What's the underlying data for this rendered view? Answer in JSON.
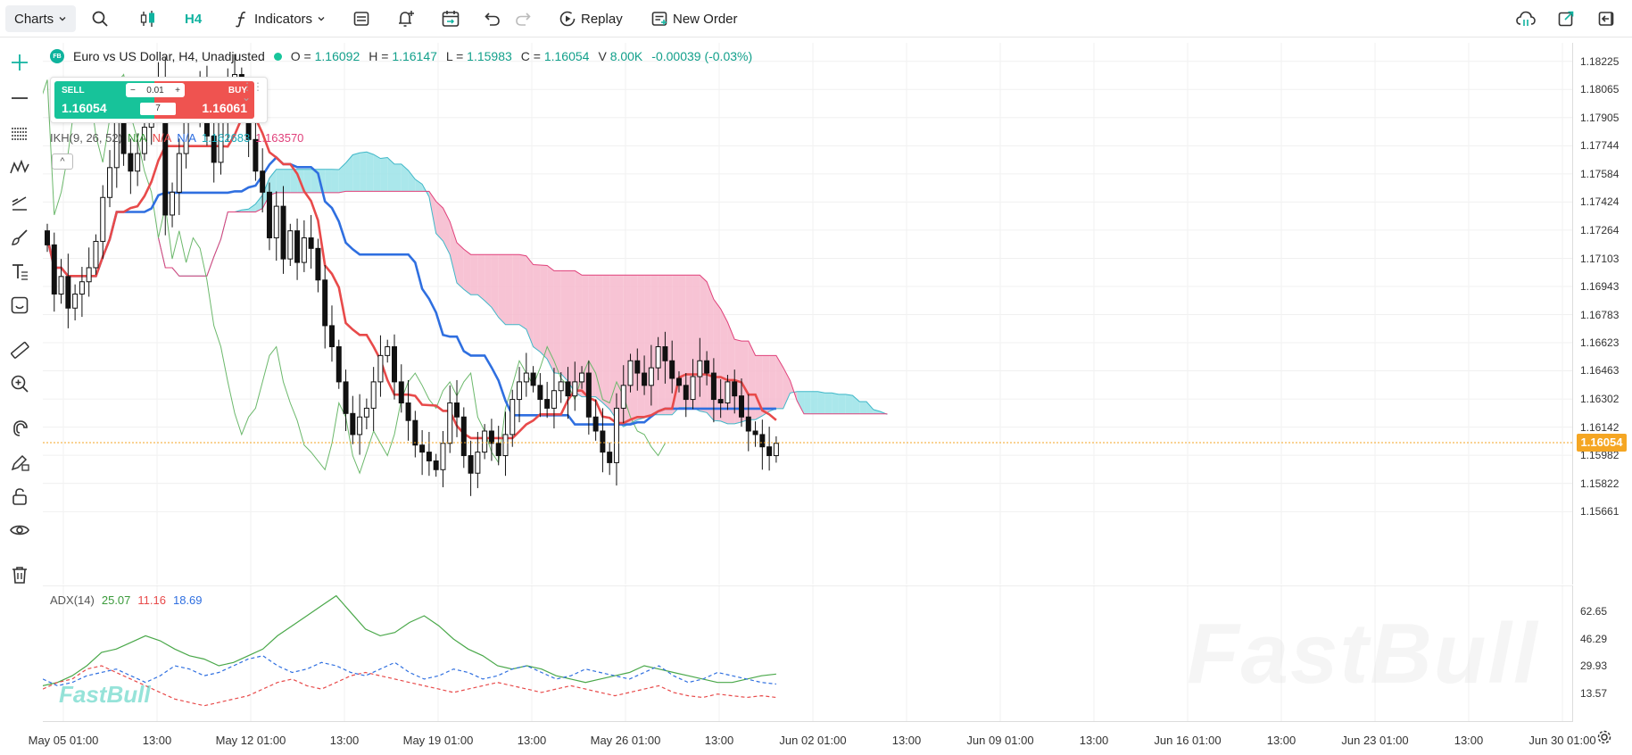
{
  "toolbar": {
    "charts_label": "Charts",
    "timeframe": "H4",
    "indicators_label": "Indicators",
    "replay_label": "Replay",
    "new_order_label": "New Order"
  },
  "legend": {
    "badge": "FB",
    "symbol": "Euro vs US Dollar, H4, Unadjusted",
    "o_key": "O =",
    "o": "1.16092",
    "h_key": "H =",
    "h": "1.16147",
    "l_key": "L =",
    "l": "1.15983",
    "c_key": "C =",
    "c": "1.16054",
    "v_key": "V",
    "v": "8.00K",
    "change": "-0.00039 (-0.03%)"
  },
  "trade": {
    "sell_label": "SELL",
    "sell_price": "1.16054",
    "buy_label": "BUY",
    "buy_price": "1.16061",
    "lot_minus": "−",
    "lot": "0.01",
    "lot_plus": "+",
    "qty": "7"
  },
  "ikh": {
    "name": "IKH(9, 26, 52)",
    "v1": "N/A",
    "v2": "N/A",
    "v3": "N/A",
    "v4": "1.162683",
    "v5": "1.163570",
    "collapse": "^"
  },
  "adx": {
    "name": "ADX(14)",
    "adx": "25.07",
    "minus_di": "11.16",
    "plus_di": "18.69"
  },
  "current_price": "1.16054",
  "watermark": "FastBull",
  "colors": {
    "up": "#ffffff",
    "down": "#111111",
    "tenkan": "#e84a4a",
    "kijun": "#2f6fe0",
    "chikou": "#6bb86b",
    "kumo_bull": "#9be3e8",
    "kumo_bear": "#f6b9cc",
    "price_line": "#f5a623"
  },
  "chart_data": [
    {
      "type": "candlestick",
      "title": "Euro vs US Dollar, H4, Unadjusted",
      "y_ticks": [
        "1.18225",
        "1.18065",
        "1.17905",
        "1.17744",
        "1.17584",
        "1.17424",
        "1.17264",
        "1.17103",
        "1.16943",
        "1.16783",
        "1.16623",
        "1.16463",
        "1.16302",
        "1.16142",
        "1.15982",
        "1.15822",
        "1.15661"
      ],
      "x_ticks": [
        "May 05 01:00",
        "13:00",
        "May 12 01:00",
        "13:00",
        "May 19 01:00",
        "13:00",
        "May 26 01:00",
        "13:00",
        "Jun 02 01:00",
        "13:00",
        "Jun 09 01:00",
        "13:00",
        "Jun 16 01:00",
        "13:00",
        "Jun 23 01:00",
        "13:00",
        "Jun 30 01:00"
      ],
      "ylim": [
        1.155,
        1.183
      ],
      "close": [
        1.1718,
        1.169,
        1.17,
        1.1682,
        1.169,
        1.1697,
        1.1705,
        1.172,
        1.1745,
        1.1762,
        1.179,
        1.177,
        1.176,
        1.177,
        1.1785,
        1.18,
        1.1812,
        1.1735,
        1.1748,
        1.177,
        1.18,
        1.1795,
        1.181,
        1.178,
        1.1765,
        1.179,
        1.181,
        1.1815,
        1.1792,
        1.1778,
        1.176,
        1.1748,
        1.1722,
        1.174,
        1.171,
        1.1726,
        1.1708,
        1.1722,
        1.1716,
        1.1698,
        1.1672,
        1.166,
        1.164,
        1.1622,
        1.161,
        1.162,
        1.1625,
        1.164,
        1.1655,
        1.166,
        1.164,
        1.1628,
        1.1618,
        1.1604,
        1.16,
        1.1595,
        1.159,
        1.1605,
        1.1628,
        1.162,
        1.1598,
        1.1588,
        1.16,
        1.1612,
        1.1605,
        1.1598,
        1.161,
        1.163,
        1.164,
        1.1645,
        1.1638,
        1.163,
        1.1625,
        1.1635,
        1.164,
        1.1632,
        1.164,
        1.1645,
        1.162,
        1.1612,
        1.16,
        1.1594,
        1.1625,
        1.1638,
        1.1652,
        1.1645,
        1.1638,
        1.1648,
        1.166,
        1.1652,
        1.1642,
        1.1638,
        1.163,
        1.1643,
        1.1652,
        1.1645,
        1.163,
        1.1628,
        1.164,
        1.1632,
        1.162,
        1.1612,
        1.161,
        1.1603,
        1.1598,
        1.1605
      ],
      "series": [
        {
          "name": "IKH(9, 26, 52)",
          "last": 1.162683
        },
        {
          "name": "IKH(9, 26, 52)",
          "last": 1.16357
        }
      ]
    },
    {
      "type": "line",
      "title": "ADX(14)",
      "y_ticks": [
        "62.65",
        "46.29",
        "29.93",
        "13.57"
      ],
      "ylim": [
        0,
        75
      ],
      "series": [
        {
          "name": "ADX",
          "last": 25.07,
          "values": [
            18,
            20,
            24,
            30,
            38,
            40,
            44,
            48,
            45,
            40,
            36,
            34,
            30,
            32,
            36,
            40,
            48,
            54,
            60,
            66,
            72,
            62,
            52,
            48,
            50,
            56,
            60,
            54,
            46,
            40,
            36,
            30,
            28,
            30,
            28,
            24,
            22,
            20,
            22,
            24,
            26,
            30,
            28,
            26,
            24,
            22,
            20,
            20,
            22,
            24,
            25
          ]
        },
        {
          "name": "-DI",
          "last": 11.16,
          "values": [
            16,
            20,
            22,
            28,
            30,
            26,
            22,
            18,
            14,
            10,
            8,
            6,
            8,
            10,
            12,
            16,
            20,
            22,
            18,
            16,
            20,
            24,
            26,
            24,
            22,
            20,
            18,
            16,
            14,
            16,
            18,
            20,
            18,
            16,
            14,
            16,
            18,
            16,
            14,
            12,
            14,
            16,
            18,
            14,
            12,
            11,
            13,
            12,
            11,
            12,
            11
          ]
        },
        {
          "name": "+DI",
          "last": 18.69,
          "values": [
            22,
            18,
            20,
            24,
            26,
            28,
            24,
            20,
            24,
            30,
            28,
            24,
            26,
            30,
            34,
            36,
            30,
            26,
            28,
            32,
            30,
            26,
            24,
            28,
            32,
            26,
            22,
            24,
            28,
            26,
            22,
            24,
            28,
            30,
            26,
            22,
            24,
            28,
            26,
            24,
            22,
            26,
            30,
            24,
            20,
            22,
            26,
            24,
            22,
            20,
            19
          ]
        }
      ]
    }
  ]
}
